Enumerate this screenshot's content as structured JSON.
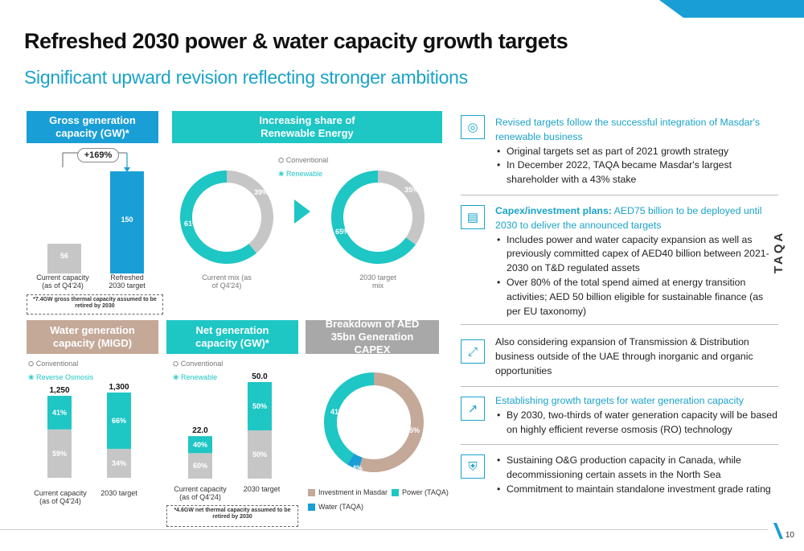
{
  "title": "Refreshed 2030 power & water capacity growth targets",
  "subtitle": "Significant upward revision reflecting stronger ambitions",
  "gross": {
    "header": "Gross generation capacity (GW)*",
    "growth": "+169%",
    "bars": [
      {
        "label": "Current capacity (as of Q4'24)",
        "value": 56,
        "text": "56",
        "color": "#c6c6c6"
      },
      {
        "label": "Refreshed 2030 target",
        "value": 150,
        "text": "150",
        "color": "#1a9ed6"
      }
    ],
    "note": "*7.4GW gross thermal capacity assumed to be retired by 2030"
  },
  "renewable_share": {
    "header": "Increasing share of Renewable Energy",
    "legend": [
      "Conventional",
      "Renewable"
    ],
    "charts": [
      {
        "caption": "Current mix (as of Q4'24)",
        "conventional": 39,
        "renewable": 61,
        "conv_text": "39%",
        "ren_text": "61%"
      },
      {
        "caption": "2030 target mix",
        "conventional": 35,
        "renewable": 65,
        "conv_text": "35%",
        "ren_text": "65%"
      }
    ]
  },
  "water": {
    "header": "Water generation capacity (MIGD)",
    "legend": [
      "Conventional",
      "Reverse Osmosis"
    ],
    "bars": [
      {
        "label": "Current capacity (as of Q4'24)",
        "total": "1,250",
        "total_value": 1250,
        "conv": 59,
        "ro": 41,
        "conv_text": "59%",
        "ro_text": "41%"
      },
      {
        "label": "2030 target",
        "total": "1,300",
        "total_value": 1300,
        "conv": 34,
        "ro": 66,
        "conv_text": "34%",
        "ro_text": "66%"
      }
    ]
  },
  "net": {
    "header": "Net generation capacity (GW)*",
    "legend": [
      "Conventional",
      "Renewable"
    ],
    "bars": [
      {
        "label": "Current capacity (as of Q4'24)",
        "total": "22.0",
        "total_value": 22.0,
        "conv": 60,
        "ren": 40,
        "conv_text": "60%",
        "ren_text": "40%"
      },
      {
        "label": "2030 target",
        "total": "50.0",
        "total_value": 50.0,
        "conv": 50,
        "ren": 50,
        "conv_text": "50%",
        "ren_text": "50%"
      }
    ],
    "note": "*4.6GW net thermal capacity assumed to be retired by 2030"
  },
  "capex": {
    "header": "Breakdown of AED 35bn Generation CAPEX",
    "slices": [
      {
        "name": "Investment in Masdar",
        "value": 55,
        "text": "55%",
        "color": "#c4a898"
      },
      {
        "name": "Water (TAQA)",
        "value": 4,
        "text": "4%",
        "color": "#1a9ed6"
      },
      {
        "name": "Power (TAQA)",
        "value": 41,
        "text": "41%",
        "color": "#1ec6c4"
      }
    ]
  },
  "right": {
    "b1": {
      "lead": "Revised targets follow the successful integration of Masdar's renewable business",
      "bullets": [
        "Original targets set as part of 2021 growth strategy",
        "In December 2022, TAQA became Masdar's largest shareholder with a 43% stake"
      ]
    },
    "b2": {
      "lead_bold": "Capex/investment plans:",
      "lead": " AED75 billion to be deployed until 2030 to deliver the announced targets",
      "bullets": [
        "Includes power and water capacity expansion as well as previously committed capex of AED40 billion between 2021-2030 on T&D regulated assets",
        "Over 80% of the total spend aimed at energy transition activities; AED 50 billion eligible for sustainable finance (as per EU taxonomy)"
      ]
    },
    "b3": {
      "text": "Also considering expansion of Transmission & Distribution business outside of the UAE through inorganic and organic opportunities"
    },
    "b4": {
      "lead": "Establishing growth targets for water generation capacity",
      "bullets": [
        "By 2030, two-thirds of water generation capacity will be based on highly efficient reverse osmosis (RO) technology"
      ]
    },
    "b5": {
      "bullets": [
        "Sustaining O&G production capacity in Canada, while decommissioning certain assets in the North Sea",
        "Commitment to maintain standalone investment grade rating"
      ]
    }
  },
  "logo": "TAQA",
  "page_number": "10",
  "colors": {
    "blue": "#1a9ed6",
    "teal": "#1ec6c4",
    "grey": "#c6c6c6",
    "tan": "#c4a898",
    "accent_text": "#1aa3c9"
  }
}
